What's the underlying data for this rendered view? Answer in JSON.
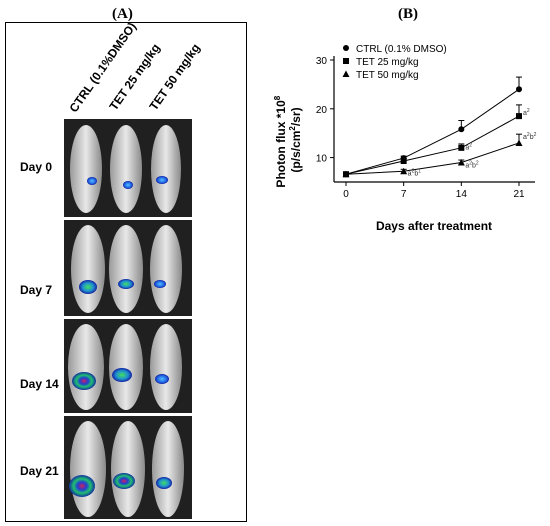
{
  "panel_a": {
    "label": "(A)",
    "columns": [
      "CTRL (0.1%DMSO)",
      "TET 25 mg/kg",
      "TET 50 mg/kg"
    ],
    "rows": [
      "Day 0",
      "Day 7",
      "Day 14",
      "Day 21"
    ]
  },
  "panel_b": {
    "label": "(B)"
  },
  "chart_data": {
    "type": "line",
    "x": [
      0,
      7,
      14,
      21
    ],
    "xlabel": "Days after treatment",
    "ylabel_line1": "Photon flux *10",
    "ylabel_exp": "8",
    "ylabel_line2_pre": "(p/s/cm",
    "ylabel_line2_exp": "2",
    "ylabel_line2_post": "/sr)",
    "ylim": [
      5,
      30
    ],
    "yticks": [
      10,
      20,
      30
    ],
    "xticks": [
      0,
      7,
      14,
      21
    ],
    "legend_position": "top-left",
    "series": [
      {
        "name": "CTRL (0.1% DMSO)",
        "marker": "circle",
        "values": [
          6.6,
          9.9,
          15.8,
          24.0
        ],
        "err": [
          0.3,
          0.4,
          1.8,
          2.5
        ]
      },
      {
        "name": "TET 25 mg/kg",
        "marker": "square",
        "values": [
          6.6,
          9.3,
          12.0,
          18.5
        ],
        "err": [
          0.3,
          0.5,
          0.8,
          2.3
        ]
      },
      {
        "name": "TET 50 mg/kg",
        "marker": "triangle",
        "values": [
          6.6,
          7.2,
          9.0,
          13.0
        ],
        "err": [
          0.3,
          0.4,
          0.5,
          1.8
        ]
      }
    ],
    "annotations": [
      {
        "x": 7,
        "y": 6.9,
        "base": "a",
        "sup1": "2",
        "mid": "b",
        "sup2": "1"
      },
      {
        "x": 14,
        "y": 12.3,
        "base": "a",
        "sup1": "2",
        "mid": "",
        "sup2": ""
      },
      {
        "x": 14,
        "y": 8.6,
        "base": "a",
        "sup1": "2",
        "mid": "b",
        "sup2": "2"
      },
      {
        "x": 21,
        "y": 19.3,
        "base": "a",
        "sup1": "2",
        "mid": "",
        "sup2": ""
      },
      {
        "x": 21,
        "y": 14.4,
        "base": "a",
        "sup1": "2",
        "mid": "b",
        "sup2": "2"
      }
    ]
  }
}
